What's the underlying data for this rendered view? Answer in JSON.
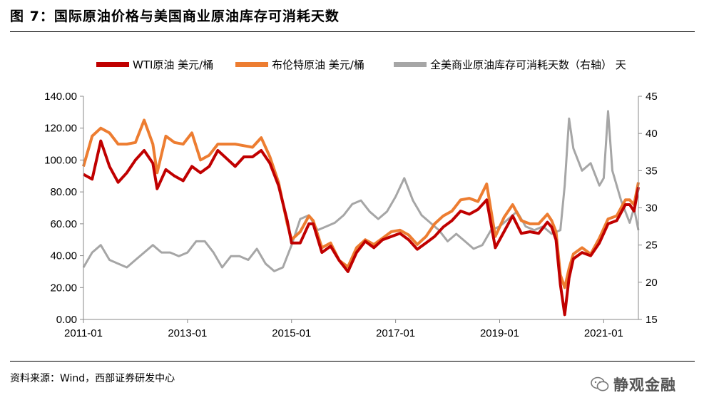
{
  "title": "图 7：国际原油价格与美国商业原油库存可消耗天数",
  "source": "资料来源：Wind，西部证券研发中心",
  "watermark": "静观金融",
  "chart_data": {
    "type": "line",
    "title": "图 7：国际原油价格与美国商业原油库存可消耗天数",
    "legend_position": "top",
    "grid": false,
    "x_ticks": [
      "2011-01",
      "2013-01",
      "2015-01",
      "2017-01",
      "2019-01",
      "2021-01"
    ],
    "x_range": [
      "2011-01",
      "2021-09"
    ],
    "y_left": {
      "range": [
        0,
        140
      ],
      "ticks": [
        "0.00",
        "20.00",
        "40.00",
        "60.00",
        "80.00",
        "100.00",
        "120.00",
        "140.00"
      ]
    },
    "y_right": {
      "range": [
        15,
        45
      ],
      "ticks": [
        "15",
        "20",
        "25",
        "30",
        "35",
        "40",
        "45"
      ]
    },
    "series": [
      {
        "name": "WTI原油 美元/桶",
        "color": "#c00000",
        "axis": "left",
        "points": [
          [
            "2011-01",
            91
          ],
          [
            "2011-03",
            88
          ],
          [
            "2011-05",
            112
          ],
          [
            "2011-07",
            96
          ],
          [
            "2011-09",
            86
          ],
          [
            "2011-11",
            92
          ],
          [
            "2012-01",
            100
          ],
          [
            "2012-03",
            106
          ],
          [
            "2012-05",
            98
          ],
          [
            "2012-06",
            82
          ],
          [
            "2012-08",
            94
          ],
          [
            "2012-10",
            90
          ],
          [
            "2012-12",
            87
          ],
          [
            "2013-02",
            96
          ],
          [
            "2013-04",
            92
          ],
          [
            "2013-06",
            96
          ],
          [
            "2013-08",
            106
          ],
          [
            "2013-10",
            101
          ],
          [
            "2013-12",
            96
          ],
          [
            "2014-02",
            102
          ],
          [
            "2014-04",
            102
          ],
          [
            "2014-06",
            106
          ],
          [
            "2014-08",
            98
          ],
          [
            "2014-10",
            84
          ],
          [
            "2014-12",
            62
          ],
          [
            "2015-01",
            48
          ],
          [
            "2015-03",
            48
          ],
          [
            "2015-05",
            60
          ],
          [
            "2015-06",
            60
          ],
          [
            "2015-08",
            42
          ],
          [
            "2015-10",
            46
          ],
          [
            "2015-12",
            37
          ],
          [
            "2016-02",
            30
          ],
          [
            "2016-04",
            42
          ],
          [
            "2016-06",
            49
          ],
          [
            "2016-08",
            45
          ],
          [
            "2016-10",
            50
          ],
          [
            "2016-12",
            52
          ],
          [
            "2017-02",
            54
          ],
          [
            "2017-04",
            50
          ],
          [
            "2017-06",
            44
          ],
          [
            "2017-08",
            48
          ],
          [
            "2017-10",
            52
          ],
          [
            "2017-12",
            58
          ],
          [
            "2018-02",
            62
          ],
          [
            "2018-04",
            68
          ],
          [
            "2018-06",
            66
          ],
          [
            "2018-08",
            69
          ],
          [
            "2018-10",
            75
          ],
          [
            "2018-12",
            45
          ],
          [
            "2019-02",
            55
          ],
          [
            "2019-04",
            65
          ],
          [
            "2019-06",
            54
          ],
          [
            "2019-08",
            55
          ],
          [
            "2019-10",
            54
          ],
          [
            "2019-12",
            61
          ],
          [
            "2020-01",
            58
          ],
          [
            "2020-02",
            50
          ],
          [
            "2020-03",
            22
          ],
          [
            "2020-04",
            3
          ],
          [
            "2020-05",
            26
          ],
          [
            "2020-06",
            38
          ],
          [
            "2020-08",
            42
          ],
          [
            "2020-10",
            40
          ],
          [
            "2020-12",
            48
          ],
          [
            "2021-02",
            60
          ],
          [
            "2021-04",
            62
          ],
          [
            "2021-06",
            72
          ],
          [
            "2021-07",
            72
          ],
          [
            "2021-08",
            68
          ],
          [
            "2021-09",
            83
          ]
        ]
      },
      {
        "name": "布伦特原油 美元/桶",
        "color": "#ed7d31",
        "axis": "left",
        "points": [
          [
            "2011-01",
            96
          ],
          [
            "2011-03",
            115
          ],
          [
            "2011-05",
            120
          ],
          [
            "2011-07",
            117
          ],
          [
            "2011-09",
            110
          ],
          [
            "2011-11",
            110
          ],
          [
            "2012-01",
            111
          ],
          [
            "2012-03",
            125
          ],
          [
            "2012-05",
            110
          ],
          [
            "2012-06",
            92
          ],
          [
            "2012-08",
            115
          ],
          [
            "2012-10",
            111
          ],
          [
            "2012-12",
            110
          ],
          [
            "2013-02",
            117
          ],
          [
            "2013-04",
            100
          ],
          [
            "2013-06",
            103
          ],
          [
            "2013-08",
            110
          ],
          [
            "2013-10",
            110
          ],
          [
            "2013-12",
            110
          ],
          [
            "2014-02",
            109
          ],
          [
            "2014-04",
            108
          ],
          [
            "2014-06",
            114
          ],
          [
            "2014-08",
            102
          ],
          [
            "2014-10",
            86
          ],
          [
            "2014-12",
            60
          ],
          [
            "2015-01",
            50
          ],
          [
            "2015-03",
            55
          ],
          [
            "2015-05",
            65
          ],
          [
            "2015-06",
            62
          ],
          [
            "2015-08",
            45
          ],
          [
            "2015-10",
            48
          ],
          [
            "2015-12",
            37
          ],
          [
            "2016-02",
            33
          ],
          [
            "2016-04",
            45
          ],
          [
            "2016-06",
            50
          ],
          [
            "2016-08",
            47
          ],
          [
            "2016-10",
            51
          ],
          [
            "2016-12",
            55
          ],
          [
            "2017-02",
            56
          ],
          [
            "2017-04",
            53
          ],
          [
            "2017-06",
            47
          ],
          [
            "2017-08",
            52
          ],
          [
            "2017-10",
            60
          ],
          [
            "2017-12",
            65
          ],
          [
            "2018-02",
            68
          ],
          [
            "2018-04",
            75
          ],
          [
            "2018-06",
            76
          ],
          [
            "2018-08",
            74
          ],
          [
            "2018-10",
            85
          ],
          [
            "2018-12",
            52
          ],
          [
            "2019-02",
            64
          ],
          [
            "2019-04",
            72
          ],
          [
            "2019-06",
            62
          ],
          [
            "2019-08",
            60
          ],
          [
            "2019-10",
            60
          ],
          [
            "2019-12",
            66
          ],
          [
            "2020-01",
            62
          ],
          [
            "2020-02",
            55
          ],
          [
            "2020-03",
            28
          ],
          [
            "2020-04",
            20
          ],
          [
            "2020-05",
            32
          ],
          [
            "2020-06",
            41
          ],
          [
            "2020-08",
            45
          ],
          [
            "2020-10",
            41
          ],
          [
            "2020-12",
            51
          ],
          [
            "2021-02",
            63
          ],
          [
            "2021-04",
            65
          ],
          [
            "2021-06",
            75
          ],
          [
            "2021-07",
            75
          ],
          [
            "2021-08",
            72
          ],
          [
            "2021-09",
            86
          ]
        ]
      },
      {
        "name": "全美商业原油库存可消耗天数（右轴） 天",
        "color": "#a6a6a6",
        "axis": "right",
        "points": [
          [
            "2011-01",
            22
          ],
          [
            "2011-03",
            24
          ],
          [
            "2011-05",
            25
          ],
          [
            "2011-07",
            23
          ],
          [
            "2011-09",
            22.5
          ],
          [
            "2011-11",
            22
          ],
          [
            "2012-01",
            23
          ],
          [
            "2012-03",
            24
          ],
          [
            "2012-05",
            25
          ],
          [
            "2012-07",
            24
          ],
          [
            "2012-09",
            24
          ],
          [
            "2012-11",
            23.5
          ],
          [
            "2013-01",
            24
          ],
          [
            "2013-03",
            25.5
          ],
          [
            "2013-05",
            25.5
          ],
          [
            "2013-07",
            24
          ],
          [
            "2013-09",
            22
          ],
          [
            "2013-11",
            23.5
          ],
          [
            "2014-01",
            23.5
          ],
          [
            "2014-03",
            23
          ],
          [
            "2014-05",
            24.5
          ],
          [
            "2014-07",
            22.5
          ],
          [
            "2014-09",
            21.5
          ],
          [
            "2014-11",
            22
          ],
          [
            "2015-01",
            25
          ],
          [
            "2015-03",
            28.5
          ],
          [
            "2015-05",
            29
          ],
          [
            "2015-07",
            27
          ],
          [
            "2015-09",
            27.5
          ],
          [
            "2015-11",
            28
          ],
          [
            "2016-01",
            29
          ],
          [
            "2016-03",
            30.5
          ],
          [
            "2016-05",
            31
          ],
          [
            "2016-07",
            29.5
          ],
          [
            "2016-09",
            28.5
          ],
          [
            "2016-11",
            29.5
          ],
          [
            "2017-01",
            31.5
          ],
          [
            "2017-03",
            34
          ],
          [
            "2017-05",
            31
          ],
          [
            "2017-07",
            29
          ],
          [
            "2017-09",
            28
          ],
          [
            "2017-11",
            27
          ],
          [
            "2018-01",
            25.5
          ],
          [
            "2018-03",
            26.5
          ],
          [
            "2018-05",
            25.5
          ],
          [
            "2018-07",
            24.5
          ],
          [
            "2018-09",
            25
          ],
          [
            "2018-11",
            27
          ],
          [
            "2019-01",
            27.5
          ],
          [
            "2019-03",
            28.5
          ],
          [
            "2019-05",
            29.5
          ],
          [
            "2019-07",
            27.5
          ],
          [
            "2019-09",
            27
          ],
          [
            "2019-11",
            27.5
          ],
          [
            "2020-01",
            26.5
          ],
          [
            "2020-03",
            27
          ],
          [
            "2020-04",
            33
          ],
          [
            "2020-05",
            42
          ],
          [
            "2020-06",
            38
          ],
          [
            "2020-08",
            35
          ],
          [
            "2020-10",
            36
          ],
          [
            "2020-12",
            33
          ],
          [
            "2021-01",
            34
          ],
          [
            "2021-02",
            43
          ],
          [
            "2021-03",
            35
          ],
          [
            "2021-05",
            31
          ],
          [
            "2021-07",
            28
          ],
          [
            "2021-08",
            30
          ],
          [
            "2021-09",
            27
          ]
        ]
      }
    ]
  }
}
